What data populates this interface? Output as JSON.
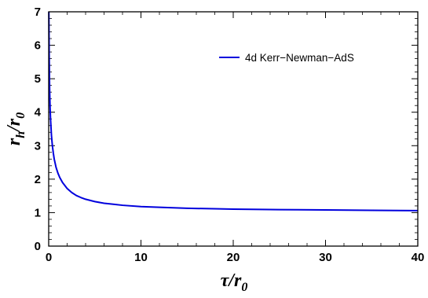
{
  "chart_data": {
    "type": "line",
    "xlabel": {
      "main": "τ/r",
      "sub": "0"
    },
    "ylabel": {
      "main": "r",
      "sub1": "h",
      "mid": "/r",
      "sub2": "0"
    },
    "xlim": [
      0,
      40
    ],
    "ylim": [
      0,
      7
    ],
    "x_ticks": [
      0,
      10,
      20,
      30,
      40
    ],
    "y_ticks": [
      0,
      1,
      2,
      3,
      4,
      5,
      6,
      7
    ],
    "grid": false,
    "legend_position": "top-right",
    "series": [
      {
        "name": "4d Kerr−Newman−AdS",
        "color": "#0000dd",
        "x": [
          0.02,
          0.05,
          0.1,
          0.15,
          0.2,
          0.3,
          0.4,
          0.5,
          0.6,
          0.8,
          1.0,
          1.2,
          1.5,
          2.0,
          2.5,
          3.0,
          3.5,
          4.0,
          5.0,
          6.0,
          7.0,
          8.0,
          10.0,
          12.0,
          15.0,
          18.0,
          20.0,
          25.0,
          30.0,
          35.0,
          40.0
        ],
        "y": [
          7.0,
          5.8,
          4.7,
          4.15,
          3.8,
          3.3,
          3.0,
          2.78,
          2.6,
          2.35,
          2.18,
          2.05,
          1.9,
          1.72,
          1.6,
          1.51,
          1.45,
          1.4,
          1.33,
          1.28,
          1.25,
          1.22,
          1.18,
          1.16,
          1.13,
          1.115,
          1.105,
          1.09,
          1.08,
          1.07,
          1.06
        ]
      }
    ]
  }
}
